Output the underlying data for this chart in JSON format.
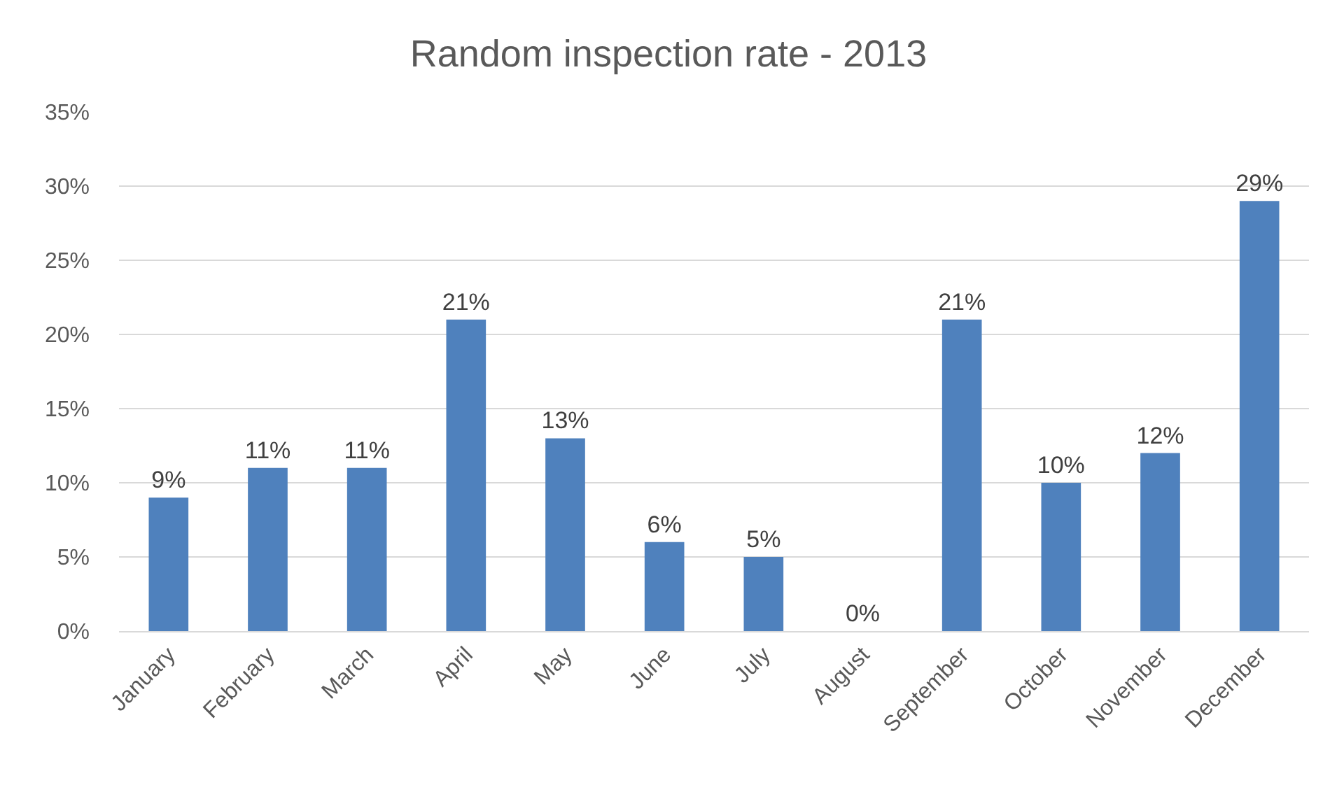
{
  "chart_data": {
    "type": "bar",
    "title": "Random inspection rate - 2013",
    "categories": [
      "January",
      "February",
      "March",
      "April",
      "May",
      "June",
      "July",
      "August",
      "September",
      "October",
      "November",
      "December"
    ],
    "values": [
      9,
      11,
      11,
      21,
      13,
      6,
      5,
      0,
      21,
      10,
      12,
      29
    ],
    "value_labels": [
      "9%",
      "11%",
      "11%",
      "21%",
      "13%",
      "6%",
      "5%",
      "0%",
      "21%",
      "10%",
      "12%",
      "29%"
    ],
    "color": "#4f81bd",
    "ylim": [
      0,
      35
    ],
    "yticks": [
      {
        "value": 0,
        "label": "0%"
      },
      {
        "value": 5,
        "label": "5%"
      },
      {
        "value": 10,
        "label": "10%"
      },
      {
        "value": 15,
        "label": "15%"
      },
      {
        "value": 20,
        "label": "20%"
      },
      {
        "value": 25,
        "label": "25%"
      },
      {
        "value": 30,
        "label": "30%"
      },
      {
        "value": 35,
        "label": "35%"
      }
    ],
    "grid": "y"
  }
}
